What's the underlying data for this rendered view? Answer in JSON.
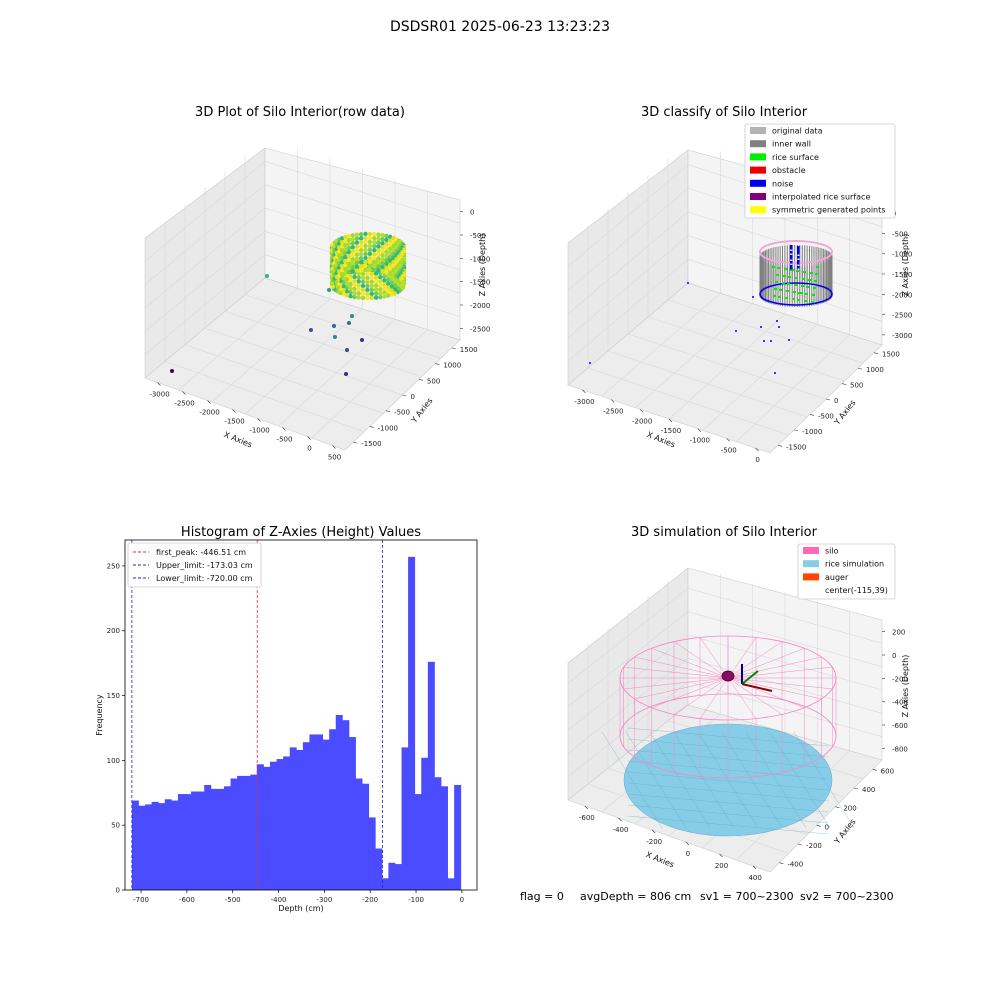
{
  "figure": {
    "suptitle": "DSDSR01 2025-06-23 13:23:23"
  },
  "colors": {
    "bar": "#4b4bff",
    "first_peak": "#e03030",
    "limits": "#2020c8",
    "pane": "#f2f2f2",
    "silo_wire": "#f785c4",
    "rice": "#87cde8"
  },
  "raw_plot": {
    "title": "3D Plot of Silo Interior(row data)",
    "xlabel": "X Axies",
    "ylabel": "Y Axies",
    "zlabel": "Z Axies (Depth)",
    "x_ticks": [
      "-3000",
      "-2500",
      "-2000",
      "-1500",
      "-1000",
      "-500",
      "0",
      "500"
    ],
    "y_ticks": [
      "1500",
      "1000",
      "500",
      "0",
      "-500",
      "-1000",
      "-1500"
    ],
    "z_ticks": [
      "0",
      "-500",
      "-1000",
      "-1500",
      "-2000",
      "-2500"
    ]
  },
  "classify_plot": {
    "title": "3D classify of Silo Interior",
    "xlabel": "X Axies",
    "ylabel": "Y Axies",
    "zlabel": "Z Axies (Depth)",
    "x_ticks": [
      "-3000",
      "-2500",
      "-2000",
      "-1500",
      "-1000",
      "-500",
      "0"
    ],
    "y_ticks": [
      "1500",
      "1000",
      "500",
      "0",
      "-500",
      "-1000",
      "-1500"
    ],
    "z_ticks": [
      "0",
      "-500",
      "-1000",
      "-1500",
      "-2000",
      "-2500",
      "-3000"
    ],
    "legend": [
      {
        "label": "original data",
        "color": "#b3b3b3"
      },
      {
        "label": "inner wall",
        "color": "#808080"
      },
      {
        "label": "rice surface",
        "color": "#00ee00"
      },
      {
        "label": "obstacle",
        "color": "#ee0000"
      },
      {
        "label": "noise",
        "color": "#0000ee"
      },
      {
        "label": "interpolated rice surface",
        "color": "#800080"
      },
      {
        "label": "symmetric generated points",
        "color": "#ffff00"
      }
    ]
  },
  "chart_data": {
    "type": "bar",
    "title": "Histogram of Z-Axies (Height) Values",
    "xlabel": "Depth (cm)",
    "ylabel": "Frequency",
    "xlim": [
      -735,
      33
    ],
    "ylim": [
      0,
      270
    ],
    "x_ticks": [
      -700,
      -600,
      -500,
      -400,
      -300,
      -200,
      -100,
      0
    ],
    "y_ticks": [
      0,
      50,
      100,
      150,
      200,
      250
    ],
    "bin_start": -720,
    "bin_width": 14.35,
    "values": [
      69,
      65,
      66,
      68,
      67,
      70,
      69,
      74,
      74,
      76,
      76,
      81,
      78,
      78,
      80,
      86,
      88,
      88,
      89,
      97,
      95,
      99,
      101,
      103,
      110,
      108,
      114,
      120,
      120,
      116,
      124,
      135,
      131,
      118,
      86,
      82,
      56,
      32,
      9,
      21,
      20,
      110,
      257,
      74,
      102,
      176,
      87,
      80,
      9,
      81
    ],
    "vlines": [
      {
        "label": "first_peak: -446.51 cm",
        "x": -446.51,
        "color": "#e03030"
      },
      {
        "label": "Upper_limit: -173.03 cm",
        "x": -173.03,
        "color": "#2020c8"
      },
      {
        "label": "Lower_limit: -720.00 cm",
        "x": -720.0,
        "color": "#2020c8"
      }
    ],
    "legend_position": "upper-left"
  },
  "simulation_plot": {
    "title": "3D simulation of Silo Interior",
    "xlabel": "X Axies",
    "ylabel": "Y Axies",
    "zlabel": "Z Axies (Depth)",
    "x_ticks": [
      "-600",
      "-400",
      "-200",
      "0",
      "200",
      "400"
    ],
    "y_ticks": [
      "600",
      "400",
      "200",
      "0",
      "-200",
      "-400"
    ],
    "z_ticks": [
      "200",
      "0",
      "-200",
      "-400",
      "-600",
      "-800"
    ],
    "legend": [
      {
        "label": "silo",
        "color": "#ff69b4"
      },
      {
        "label": "rice simulation",
        "color": "#87cde8"
      },
      {
        "label": "auger",
        "color": "#ff4500"
      },
      {
        "label": "center(-115,39)",
        "color": "none"
      }
    ]
  },
  "footer": {
    "flag": "flag = 0",
    "avg_depth": "avgDepth = 806 cm",
    "sv1": "sv1 = 700~2300",
    "sv2": "sv2 = 700~2300"
  }
}
